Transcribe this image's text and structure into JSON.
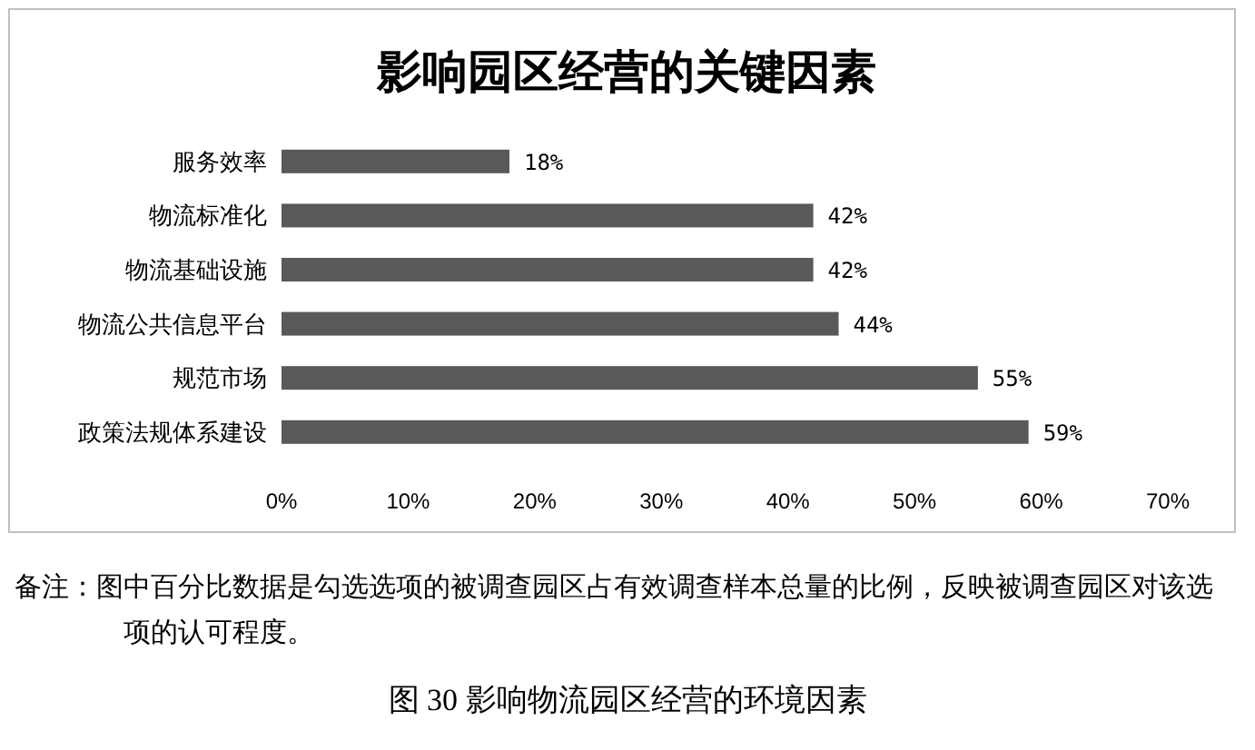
{
  "chart_data": {
    "type": "bar",
    "orientation": "horizontal",
    "title": "影响园区经营的关键因素",
    "categories": [
      "服务效率",
      "物流标准化",
      "物流基础设施",
      "物流公共信息平台",
      "规范市场",
      "政策法规体系建设"
    ],
    "values": [
      18,
      42,
      42,
      44,
      55,
      59
    ],
    "value_labels": [
      "18%",
      "42%",
      "42%",
      "44%",
      "55%",
      "59%"
    ],
    "color": "#595959",
    "xlim": [
      0,
      70
    ],
    "xticks": [
      {
        "value": 0,
        "label": "0%"
      },
      {
        "value": 10,
        "label": "10%"
      },
      {
        "value": 20,
        "label": "20%"
      },
      {
        "value": 30,
        "label": "30%"
      },
      {
        "value": 40,
        "label": "40%"
      },
      {
        "value": 50,
        "label": "50%"
      },
      {
        "value": 60,
        "label": "60%"
      },
      {
        "value": 70,
        "label": "70%"
      }
    ],
    "annotations": [
      "备注：图中百分比数据是勾选选项的被调查园区占有效调查样本总量的比例，反映被调查园区对该选项的认可程度。",
      "图 30 影响物流园区经营的环境因素"
    ]
  }
}
